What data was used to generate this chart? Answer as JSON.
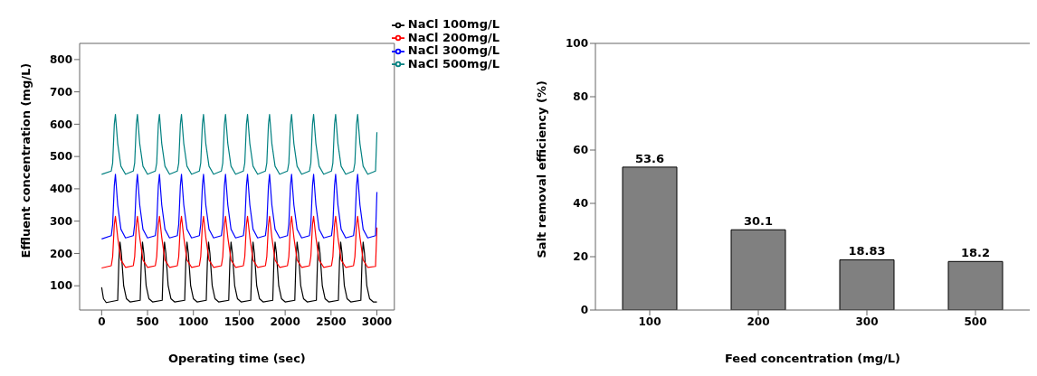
{
  "chart_data": [
    {
      "type": "line",
      "xlabel": "Operating time (sec)",
      "ylabel": "Effluent concentration (mg/L)",
      "xlim": [
        -240,
        3190
      ],
      "xticks": [
        0,
        500,
        1000,
        1500,
        2000,
        2500,
        3000
      ],
      "ylim": [
        25,
        850
      ],
      "yticks": [
        100,
        200,
        300,
        400,
        500,
        600,
        700,
        800
      ],
      "grid": false,
      "legend": "top right",
      "marker": "none",
      "line_style": "solid",
      "x": [
        0,
        105,
        120,
        138,
        150,
        175,
        210,
        260,
        345,
        360,
        378,
        390,
        415,
        450,
        500,
        585,
        600,
        618,
        630,
        655,
        690,
        740,
        825,
        840,
        858,
        870,
        895,
        930,
        980,
        1065,
        1080,
        1098,
        1110,
        1135,
        1170,
        1220,
        1305,
        1320,
        1338,
        1350,
        1375,
        1410,
        1460,
        1545,
        1560,
        1578,
        1590,
        1615,
        1650,
        1700,
        1785,
        1800,
        1818,
        1830,
        1855,
        1890,
        1940,
        2025,
        2040,
        2058,
        2070,
        2095,
        2130,
        2180,
        2265,
        2280,
        2298,
        2310,
        2335,
        2370,
        2420,
        2505,
        2520,
        2538,
        2550,
        2575,
        2610,
        2660,
        2745,
        2760,
        2778,
        2790,
        2815,
        2850,
        2900,
        2985,
        3000
      ],
      "series": [
        {
          "name": "NaCl 100mg/L",
          "color": "#000000",
          "x": [
            0,
            20,
            50,
            175,
            188,
            200,
            215,
            240,
            270,
            310,
            420,
            433,
            445,
            460,
            485,
            515,
            555,
            660,
            673,
            685,
            700,
            725,
            755,
            795,
            905,
            918,
            930,
            945,
            970,
            1000,
            1040,
            1140,
            1153,
            1165,
            1180,
            1205,
            1235,
            1275,
            1385,
            1398,
            1410,
            1425,
            1450,
            1480,
            1520,
            1625,
            1638,
            1650,
            1665,
            1690,
            1720,
            1760,
            1865,
            1878,
            1890,
            1905,
            1930,
            1960,
            2000,
            2105,
            2118,
            2130,
            2145,
            2170,
            2200,
            2240,
            2340,
            2353,
            2365,
            2380,
            2405,
            2435,
            2475,
            2580,
            2593,
            2605,
            2620,
            2645,
            2675,
            2715,
            2825,
            2838,
            2850,
            2865,
            2890,
            2920,
            2960,
            3000
          ],
          "values": [
            95,
            60,
            48,
            55,
            180,
            235,
            200,
            100,
            60,
            50,
            55,
            180,
            235,
            200,
            100,
            60,
            50,
            55,
            180,
            235,
            200,
            100,
            60,
            50,
            55,
            180,
            235,
            200,
            100,
            60,
            50,
            55,
            180,
            235,
            200,
            100,
            60,
            50,
            55,
            180,
            235,
            200,
            100,
            60,
            50,
            55,
            180,
            235,
            200,
            100,
            60,
            50,
            55,
            180,
            235,
            200,
            100,
            60,
            50,
            55,
            180,
            235,
            200,
            100,
            60,
            50,
            55,
            180,
            235,
            200,
            100,
            60,
            50,
            55,
            180,
            235,
            200,
            100,
            60,
            50,
            55,
            180,
            235,
            200,
            100,
            60,
            50,
            50
          ]
        },
        {
          "name": "NaCl 200mg/L",
          "color": "#ff0000",
          "values": [
            155,
            162,
            190,
            290,
            315,
            250,
            180,
            157,
            162,
            190,
            290,
            315,
            250,
            180,
            157,
            162,
            190,
            290,
            315,
            250,
            180,
            157,
            162,
            190,
            290,
            315,
            250,
            180,
            157,
            162,
            190,
            290,
            315,
            250,
            180,
            157,
            162,
            190,
            290,
            315,
            250,
            180,
            157,
            162,
            190,
            290,
            315,
            250,
            180,
            157,
            162,
            190,
            290,
            315,
            250,
            180,
            157,
            162,
            190,
            290,
            315,
            250,
            180,
            157,
            162,
            190,
            290,
            315,
            250,
            180,
            157,
            162,
            190,
            290,
            315,
            250,
            180,
            157,
            162,
            190,
            290,
            315,
            250,
            180,
            157,
            160,
            280
          ]
        },
        {
          "name": "NaCl 300mg/L",
          "color": "#0000ff",
          "values": [
            245,
            255,
            290,
            410,
            445,
            350,
            275,
            248,
            255,
            290,
            410,
            445,
            350,
            275,
            248,
            255,
            290,
            410,
            445,
            350,
            275,
            248,
            255,
            290,
            410,
            445,
            350,
            275,
            248,
            255,
            290,
            410,
            445,
            350,
            275,
            248,
            255,
            290,
            410,
            445,
            350,
            275,
            248,
            255,
            290,
            410,
            445,
            350,
            275,
            248,
            255,
            290,
            410,
            445,
            350,
            275,
            248,
            255,
            290,
            410,
            445,
            350,
            275,
            248,
            255,
            290,
            410,
            445,
            350,
            275,
            248,
            255,
            290,
            410,
            445,
            350,
            275,
            248,
            255,
            290,
            410,
            445,
            350,
            275,
            248,
            255,
            390
          ]
        },
        {
          "name": "NaCl 500mg/L",
          "color": "#008080",
          "values": [
            445,
            455,
            480,
            600,
            630,
            540,
            470,
            445,
            455,
            480,
            600,
            630,
            540,
            470,
            445,
            455,
            480,
            600,
            630,
            540,
            470,
            445,
            455,
            480,
            600,
            630,
            540,
            470,
            445,
            455,
            480,
            600,
            630,
            540,
            470,
            445,
            455,
            480,
            600,
            630,
            540,
            470,
            445,
            455,
            480,
            600,
            630,
            540,
            470,
            445,
            455,
            480,
            600,
            630,
            540,
            470,
            445,
            455,
            480,
            600,
            630,
            540,
            470,
            445,
            455,
            480,
            600,
            630,
            540,
            470,
            445,
            455,
            480,
            600,
            630,
            540,
            470,
            445,
            455,
            480,
            600,
            630,
            540,
            470,
            445,
            455,
            575
          ]
        }
      ]
    },
    {
      "type": "bar",
      "xlabel": "Feed concentration (mg/L)",
      "ylabel": "Salt removal efficiency (%)",
      "categories": [
        "100",
        "200",
        "300",
        "500"
      ],
      "values": [
        53.6,
        30.1,
        18.83,
        18.2
      ],
      "color": "#808080",
      "ylim": [
        0,
        100
      ],
      "yticks": [
        0,
        20,
        40,
        60,
        80,
        100
      ],
      "data_labels": true,
      "grid": false
    }
  ]
}
